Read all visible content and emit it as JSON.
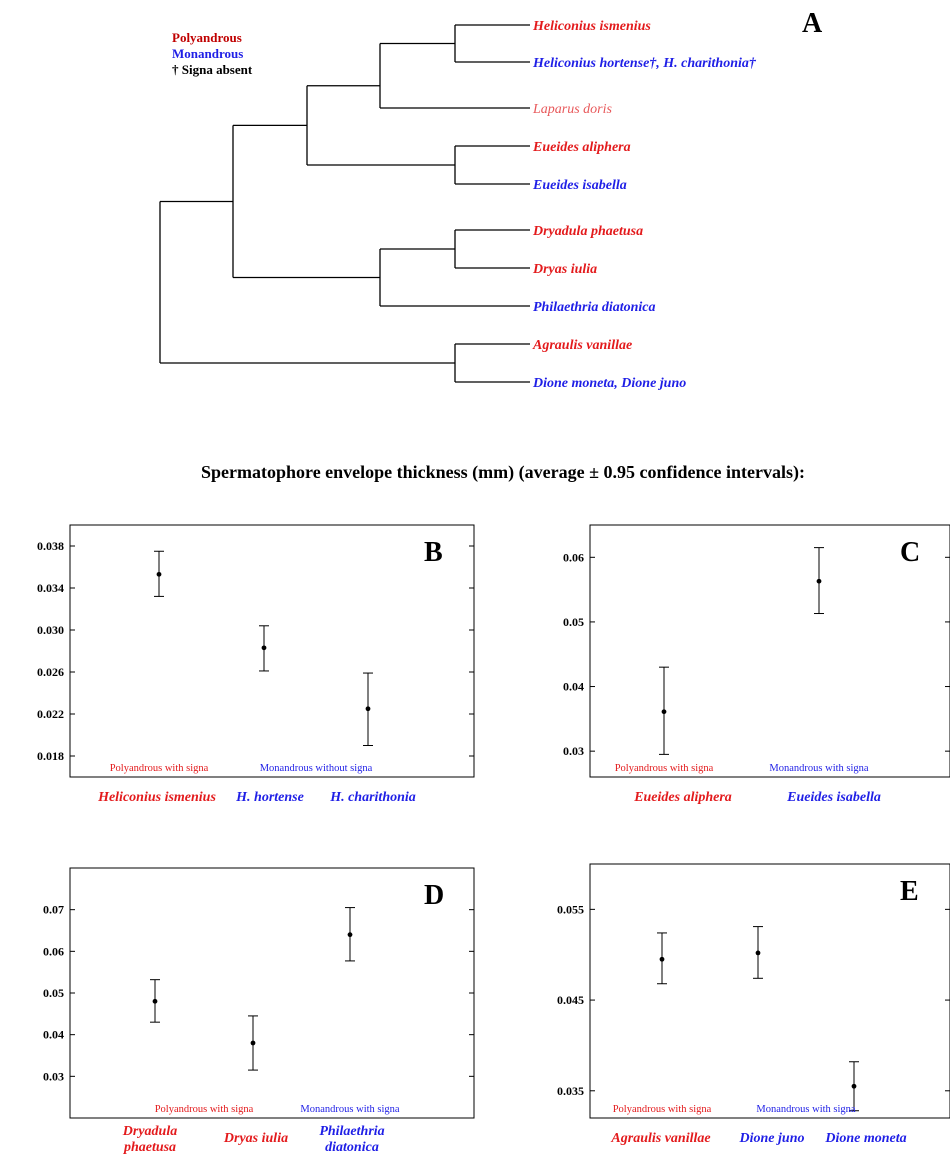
{
  "colors": {
    "polyandrous": "#e31a1c",
    "monandrous": "#1f1fe6",
    "laparus": "#e8585a",
    "black": "#000000"
  },
  "tree": {
    "legend": [
      {
        "text": "Polyandrous",
        "color": "#c00000"
      },
      {
        "text": "Monandrous",
        "color": "#1f1fe6"
      },
      {
        "text": "† Signa absent",
        "color": "#000000"
      }
    ],
    "panel_label": "A",
    "tips": [
      {
        "label": "Heliconius ismenius",
        "mating": "polyandrous",
        "bold": true
      },
      {
        "label": "Heliconius hortense†, H. charithonia†",
        "mating": "monandrous",
        "bold": true
      },
      {
        "label": "Laparus doris",
        "mating": "laparus",
        "bold": false
      },
      {
        "label": "Eueides aliphera",
        "mating": "polyandrous",
        "bold": true
      },
      {
        "label": "Eueides isabella",
        "mating": "monandrous",
        "bold": true
      },
      {
        "label": "Dryadula phaetusa",
        "mating": "polyandrous",
        "bold": true
      },
      {
        "label": "Dryas iulia",
        "mating": "polyandrous",
        "bold": true
      },
      {
        "label": "Philaethria diatonica",
        "mating": "monandrous",
        "bold": true
      },
      {
        "label": "Agraulis vanillae",
        "mating": "polyandrous",
        "bold": true
      },
      {
        "label": "Dione moneta, Dione juno",
        "mating": "monandrous",
        "bold": true
      }
    ]
  },
  "section_title": "Spermatophore envelope thickness (mm) (average ± 0.95 confidence intervals):",
  "chart_data": [
    {
      "panel": "B",
      "type": "scatter",
      "ylim": [
        0.016,
        0.04
      ],
      "yticks": [
        "0.038",
        "0.034",
        "0.030",
        "0.026",
        "0.022",
        "0.018"
      ],
      "group_labels": [
        {
          "text": "Polyandrous with signa",
          "color": "polyandrous",
          "pos": 0
        },
        {
          "text": "Monandrous without signa",
          "color": "monandrous",
          "pos": 1.5
        }
      ],
      "points": [
        {
          "label": "Heliconius ismenius",
          "color": "polyandrous",
          "mean": 0.0353,
          "low": 0.0332,
          "high": 0.0375
        },
        {
          "label": "H. hortense",
          "color": "monandrous",
          "mean": 0.0283,
          "low": 0.0261,
          "high": 0.0304
        },
        {
          "label": "H. charithonia",
          "color": "monandrous",
          "mean": 0.0225,
          "low": 0.019,
          "high": 0.0259
        }
      ]
    },
    {
      "panel": "C",
      "type": "scatter",
      "ylim": [
        0.026,
        0.065
      ],
      "yticks": [
        "0.06",
        "0.05",
        "0.04",
        "0.03"
      ],
      "group_labels": [
        {
          "text": "Polyandrous with signa",
          "color": "polyandrous",
          "pos": 0
        },
        {
          "text": "Monandrous with signa",
          "color": "monandrous",
          "pos": 1
        }
      ],
      "points": [
        {
          "label": "Eueides aliphera",
          "color": "polyandrous",
          "mean": 0.0361,
          "low": 0.0295,
          "high": 0.043
        },
        {
          "label": "Eueides isabella",
          "color": "monandrous",
          "mean": 0.0563,
          "low": 0.0513,
          "high": 0.0615
        }
      ]
    },
    {
      "panel": "D",
      "type": "scatter",
      "ylim": [
        0.02,
        0.08
      ],
      "yticks": [
        "0.07",
        "0.06",
        "0.05",
        "0.04",
        "0.03"
      ],
      "group_labels": [
        {
          "text": "Polyandrous with signa",
          "color": "polyandrous",
          "pos": 0.5
        },
        {
          "text": "Monandrous with signa",
          "color": "monandrous",
          "pos": 2
        }
      ],
      "points": [
        {
          "label": "Dryadula phaetusa",
          "label_lines": [
            "Dryadula",
            "phaetusa"
          ],
          "color": "polyandrous",
          "mean": 0.048,
          "low": 0.043,
          "high": 0.0532
        },
        {
          "label": "Dryas iulia",
          "label_lines": [
            "Dryas iulia"
          ],
          "color": "polyandrous",
          "mean": 0.038,
          "low": 0.0315,
          "high": 0.0445
        },
        {
          "label": "Philaethria diatonica",
          "label_lines": [
            "Philaethria",
            "diatonica"
          ],
          "color": "monandrous",
          "mean": 0.064,
          "low": 0.0577,
          "high": 0.0705
        }
      ]
    },
    {
      "panel": "E",
      "type": "scatter",
      "ylim": [
        0.032,
        0.06
      ],
      "yticks": [
        "0.055",
        "0.045",
        "0.035"
      ],
      "group_labels": [
        {
          "text": "Polyandrous with signa",
          "color": "polyandrous",
          "pos": 0
        },
        {
          "text": "Monandrous with signa",
          "color": "monandrous",
          "pos": 1.5
        }
      ],
      "points": [
        {
          "label": "Agraulis vanillae",
          "color": "polyandrous",
          "mean": 0.0495,
          "low": 0.0468,
          "high": 0.0524
        },
        {
          "label": "Dione juno",
          "color": "monandrous",
          "mean": 0.0502,
          "low": 0.0474,
          "high": 0.0531
        },
        {
          "label": "Dione moneta",
          "color": "monandrous",
          "mean": 0.0355,
          "low": 0.0328,
          "high": 0.0382
        }
      ]
    }
  ]
}
